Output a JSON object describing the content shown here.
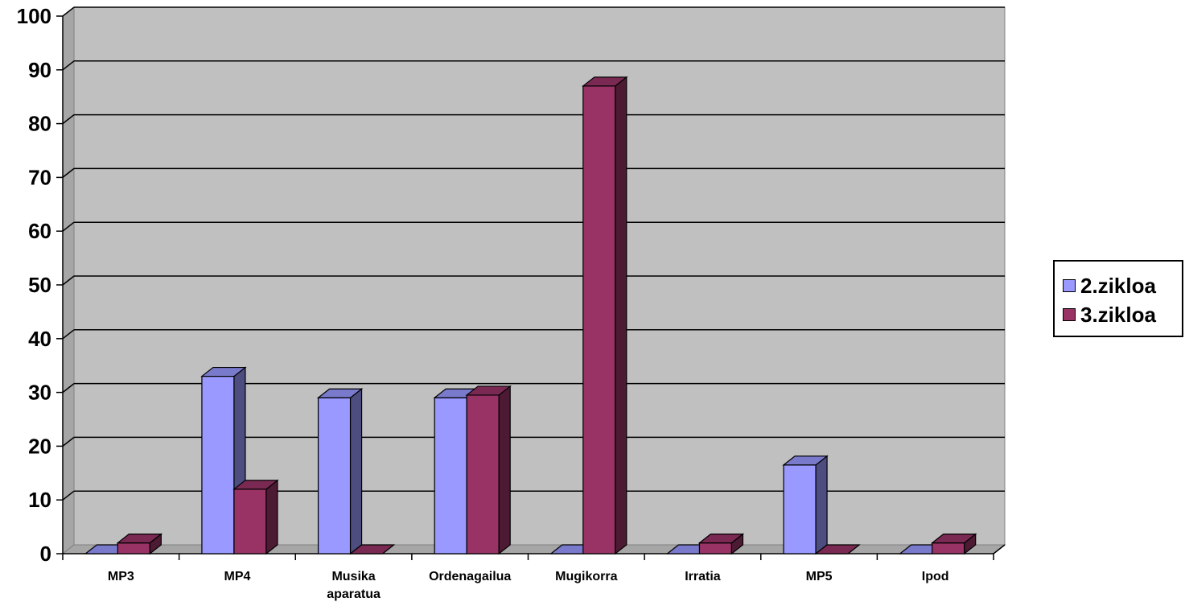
{
  "chart_data": {
    "type": "bar",
    "style": "3d-clustered-column",
    "categories": [
      "MP3",
      "MP4",
      "Musika aparatua",
      "Ordenagailua",
      "Mugikorra",
      "Irratia",
      "MP5",
      "Ipod"
    ],
    "series": [
      {
        "name": "2.zikloa",
        "values": [
          0,
          33,
          29,
          29,
          0,
          0,
          16.5,
          0
        ],
        "color": "#9999ff",
        "side_color": "#4d4d80",
        "top_color": "#7a7acc"
      },
      {
        "name": "3.zikloa",
        "values": [
          2,
          12,
          0,
          29.5,
          87,
          2,
          0,
          2
        ],
        "color": "#993366",
        "side_color": "#4d1a33",
        "top_color": "#7a2952"
      }
    ],
    "ylim": [
      0,
      100
    ],
    "yticks": [
      "0",
      "10",
      "20",
      "30",
      "40",
      "50",
      "60",
      "70",
      "80",
      "90",
      "100"
    ],
    "grid": true,
    "legend_position": "right",
    "plot_background": "#c0c0c0",
    "title": "",
    "xlabel": "",
    "ylabel": ""
  }
}
